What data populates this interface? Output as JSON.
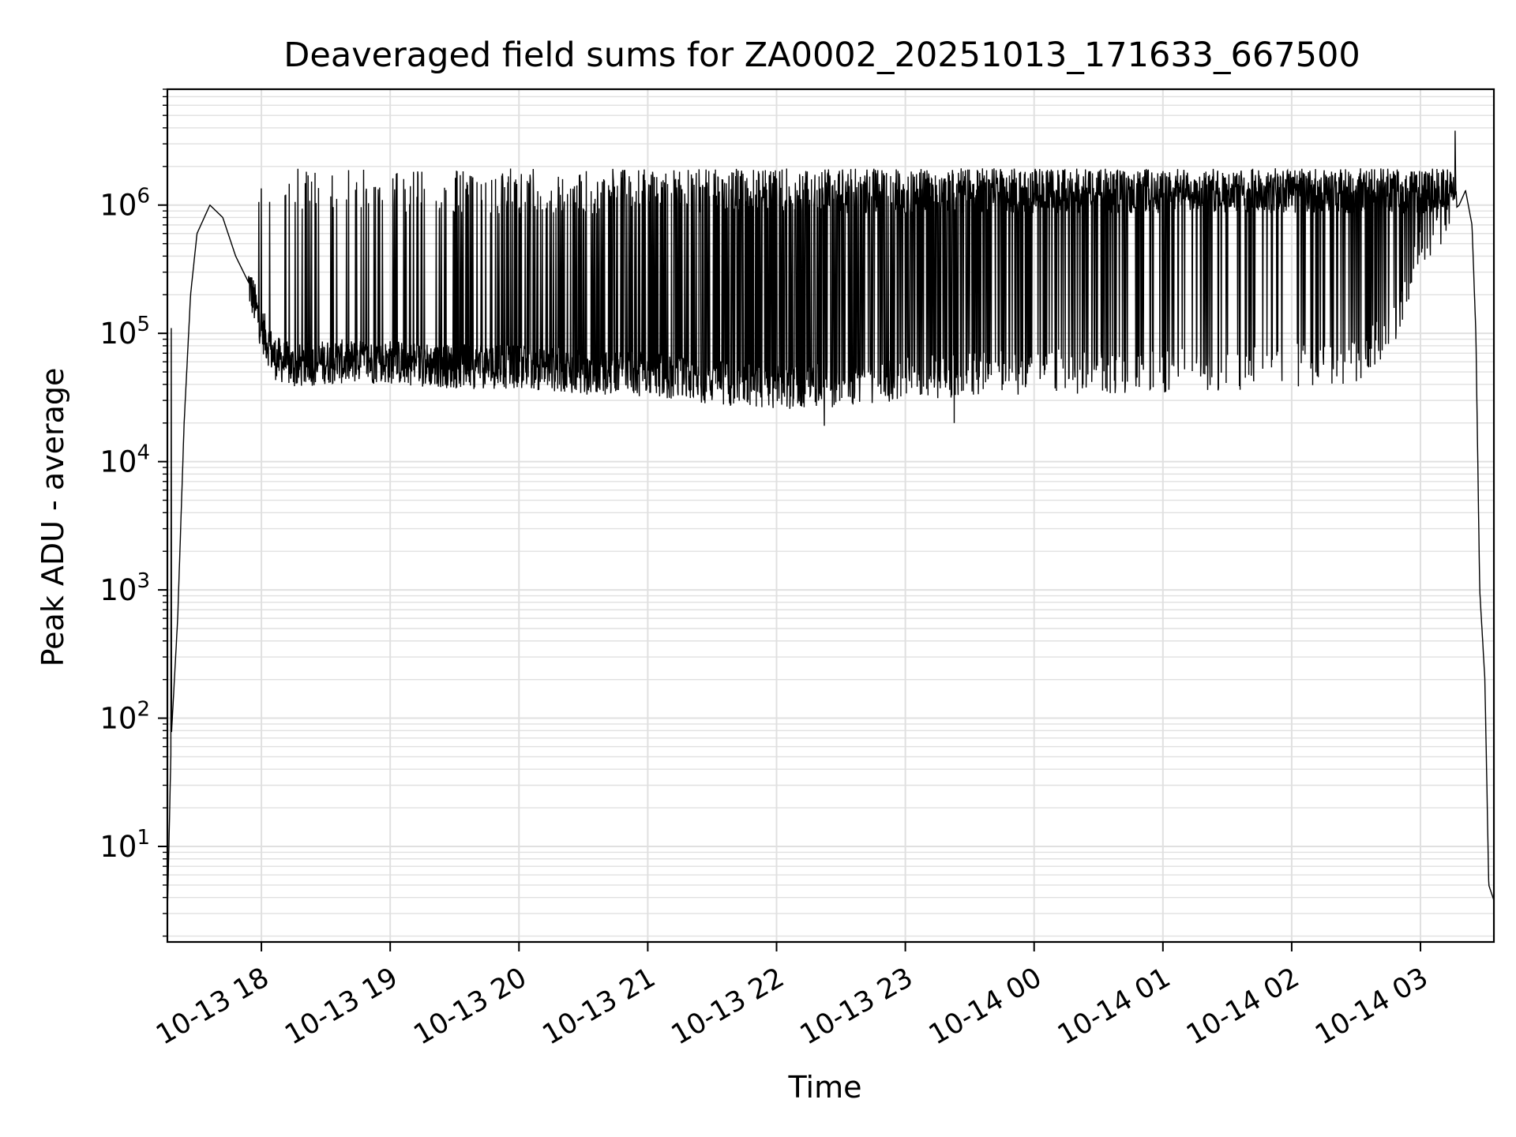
{
  "chart_data": {
    "type": "line",
    "title": "Deaveraged field sums for ZA0002_20251013_171633_667500",
    "xlabel": "Time",
    "ylabel": "Peak ADU - average",
    "yscale": "log",
    "ylim": [
      1.8,
      8000000
    ],
    "xlim_hours": [
      17.27,
      27.57
    ],
    "grid": true,
    "line_color": "#000000",
    "grid_color": "#e0e0e0",
    "x_ticks": [
      {
        "hour": 18,
        "label": "10-13 18"
      },
      {
        "hour": 19,
        "label": "10-13 19"
      },
      {
        "hour": 20,
        "label": "10-13 20"
      },
      {
        "hour": 21,
        "label": "10-13 21"
      },
      {
        "hour": 22,
        "label": "10-13 22"
      },
      {
        "hour": 23,
        "label": "10-13 23"
      },
      {
        "hour": 24,
        "label": "10-14 00"
      },
      {
        "hour": 25,
        "label": "10-14 01"
      },
      {
        "hour": 26,
        "label": "10-14 02"
      },
      {
        "hour": 27,
        "label": "10-14 03"
      }
    ],
    "y_ticks": [
      {
        "exp": 1,
        "label": "10",
        "sup": "1"
      },
      {
        "exp": 2,
        "label": "10",
        "sup": "2"
      },
      {
        "exp": 3,
        "label": "10",
        "sup": "3"
      },
      {
        "exp": 4,
        "label": "10",
        "sup": "4"
      },
      {
        "exp": 5,
        "label": "10",
        "sup": "5"
      },
      {
        "exp": 6,
        "label": "10",
        "sup": "6"
      }
    ],
    "series": [
      {
        "name": "Peak ADU - average",
        "baseline": [
          [
            17.27,
            3
          ],
          [
            17.3,
            70
          ],
          [
            17.35,
            600
          ],
          [
            17.4,
            20000
          ],
          [
            17.45,
            200000
          ],
          [
            17.5,
            600000
          ],
          [
            17.6,
            1000000
          ],
          [
            17.7,
            800000
          ],
          [
            17.8,
            400000
          ],
          [
            17.9,
            250000
          ],
          [
            18.0,
            110000
          ],
          [
            18.1,
            65000
          ],
          [
            18.25,
            55000
          ],
          [
            18.5,
            60000
          ],
          [
            19.0,
            60000
          ],
          [
            19.5,
            55000
          ],
          [
            20.0,
            55000
          ],
          [
            20.5,
            50000
          ],
          [
            21.0,
            48000
          ],
          [
            21.5,
            42000
          ],
          [
            22.0,
            38000
          ],
          [
            22.5,
            40000
          ],
          [
            23.0,
            45000
          ],
          [
            23.5,
            48000
          ],
          [
            24.0,
            50000
          ],
          [
            25.0,
            50000
          ],
          [
            26.0,
            55000
          ],
          [
            26.5,
            60000
          ],
          [
            26.8,
            120000
          ],
          [
            27.0,
            500000
          ],
          [
            27.2,
            800000
          ],
          [
            27.3,
            1000000
          ],
          [
            27.35,
            1300000
          ],
          [
            27.4,
            700000
          ],
          [
            27.43,
            100000
          ],
          [
            27.46,
            1000
          ],
          [
            27.5,
            200
          ],
          [
            27.53,
            5
          ],
          [
            27.57,
            3.8
          ]
        ],
        "peak_level": 1400000,
        "spike_density": [
          [
            17.9,
            0.05
          ],
          [
            19.0,
            0.12
          ],
          [
            20.0,
            0.2
          ],
          [
            21.0,
            0.35
          ],
          [
            22.0,
            0.5
          ],
          [
            23.3,
            0.65
          ],
          [
            24.0,
            0.8
          ],
          [
            25.0,
            0.85
          ],
          [
            26.0,
            0.85
          ],
          [
            27.0,
            0.8
          ]
        ],
        "notable_points": [
          {
            "hour": 27.27,
            "value": 3800000
          },
          {
            "hour": 17.3,
            "value": 110000
          },
          {
            "hour": 22.37,
            "value": 19000
          },
          {
            "hour": 23.38,
            "value": 20000
          }
        ]
      }
    ]
  }
}
